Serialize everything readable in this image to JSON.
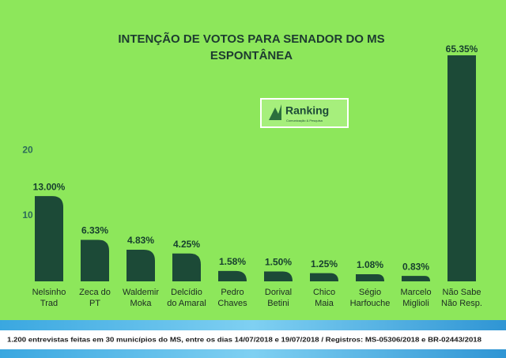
{
  "chart_data": {
    "type": "bar",
    "title": "INTENÇÃO DE VOTOS PARA SENADOR DO MS",
    "subtitle": "ESPONTÂNEA",
    "logo": {
      "name": "Ranking",
      "tagline": "Comunicação & Pesquisa"
    },
    "categories": [
      [
        "Nelsinho",
        "Trad"
      ],
      [
        "Zeca do",
        "PT"
      ],
      [
        "Waldemir",
        "Moka"
      ],
      [
        "Delcídio",
        "do Amaral"
      ],
      [
        "Pedro",
        "Chaves"
      ],
      [
        "Dorival",
        "Betini"
      ],
      [
        "Chico",
        "Maia"
      ],
      [
        "Ségio",
        "Harfouche"
      ],
      [
        "Marcelo",
        "Miglioli"
      ],
      [
        "Não Sabe",
        "Não Resp."
      ]
    ],
    "values": [
      13.0,
      6.33,
      4.83,
      4.25,
      1.58,
      1.5,
      1.25,
      1.08,
      0.83,
      65.35
    ],
    "value_labels": [
      "13.00%",
      "6.33%",
      "4.83%",
      "4.25%",
      "1.58%",
      "1.50%",
      "1.25%",
      "1.08%",
      "0.83%",
      "65.35%"
    ],
    "color": "#1c4a37",
    "ylim": [
      0,
      34
    ],
    "yticks": [
      10,
      20
    ],
    "footnote": "1.200 entrevistas feitas em 30 municípios do MS, entre os dias 14/07/2018 e 19/07/2018 / Registros: MS-05306/2018 e BR-02443/2018"
  }
}
